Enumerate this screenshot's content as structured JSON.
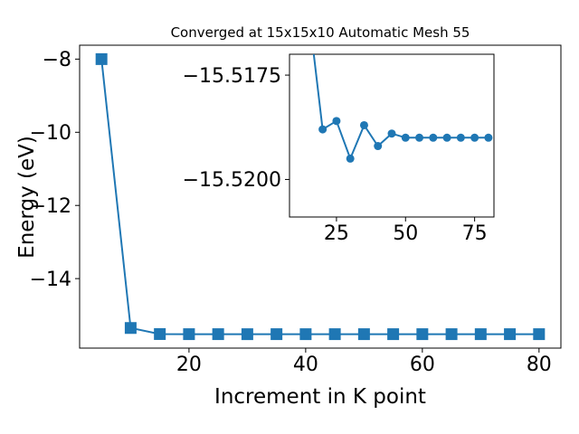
{
  "chart_data": {
    "type": "line",
    "title": "Converged at 15x15x10 Automatic Mesh 55",
    "xlabel": "Increment in K point",
    "ylabel": "Energy (eV)",
    "color": "#1f77b4",
    "background": "#ffffff",
    "x": [
      5,
      10,
      15,
      20,
      25,
      30,
      35,
      40,
      45,
      50,
      55,
      60,
      65,
      70,
      75,
      80
    ],
    "y": [
      -8.0,
      -15.35,
      -15.516,
      -15.5188,
      -15.5186,
      -15.5195,
      -15.5187,
      -15.5192,
      -15.5189,
      -15.519,
      -15.519,
      -15.519,
      -15.519,
      -15.519,
      -15.519,
      -15.519
    ],
    "main_axes": {
      "xlim": [
        1.25,
        83.75
      ],
      "ylim": [
        -15.9,
        -7.62
      ],
      "xticks": [
        20,
        40,
        60,
        80
      ],
      "xtick_labels": [
        "20",
        "40",
        "60",
        "80"
      ],
      "yticks": [
        -8,
        -10,
        -12,
        -14
      ],
      "ytick_labels": [
        "−8",
        "−10",
        "−12",
        "−14"
      ],
      "marker": "square"
    },
    "inset_axes": {
      "xlim": [
        8,
        82
      ],
      "ylim": [
        -15.5209,
        -15.517
      ],
      "xticks": [
        25,
        50,
        75
      ],
      "xtick_labels": [
        "25",
        "50",
        "75"
      ],
      "yticks": [
        -15.5175,
        -15.52
      ],
      "ytick_labels": [
        "−15.5175",
        "−15.5200"
      ],
      "marker": "circle"
    }
  }
}
